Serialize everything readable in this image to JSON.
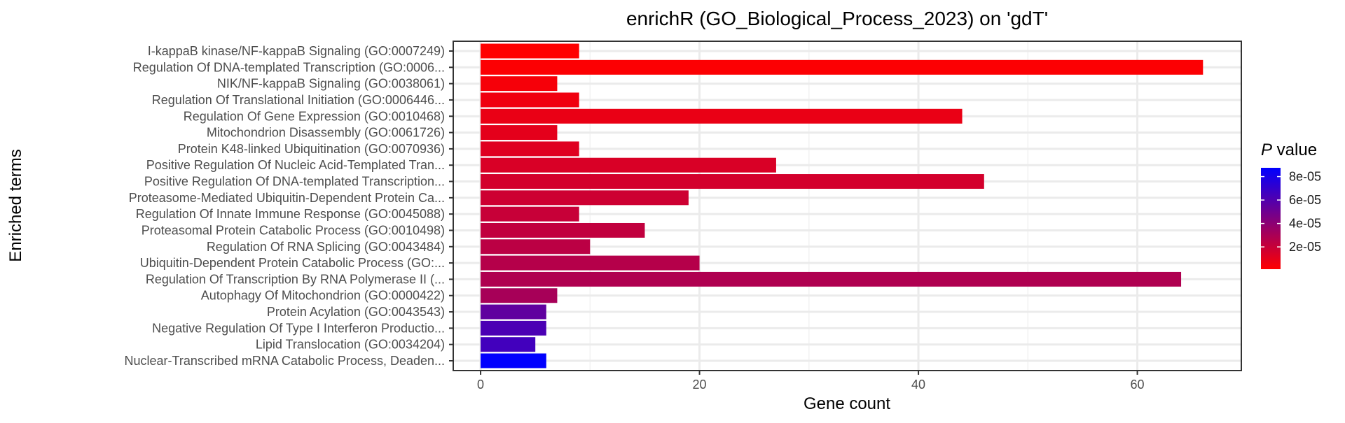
{
  "chart_data": {
    "type": "bar",
    "orientation": "horizontal",
    "title": "enrichR (GO_Biological_Process_2023) on 'gdT'",
    "xlabel": "Gene count",
    "ylabel": "Enriched terms",
    "xlim": [
      -2.5,
      69.5
    ],
    "xticks": [
      0,
      20,
      40,
      60
    ],
    "xtick_labels": [
      "0",
      "20",
      "40",
      "60"
    ],
    "grid": true,
    "legend": {
      "title_italic": "P",
      "title_rest": " value",
      "position": "right",
      "type": "colorbar",
      "range": [
        1e-06,
        8.75e-05
      ],
      "ticks": [
        2e-05,
        4e-05,
        6e-05,
        8e-05
      ],
      "tick_labels": [
        "2e-05",
        "4e-05",
        "6e-05",
        "8e-05"
      ],
      "color_low": "#ff0000",
      "color_high": "#0000ff"
    },
    "categories": [
      "I-kappaB kinase/NF-kappaB Signaling (GO:0007249)",
      "Regulation Of DNA-templated Transcription (GO:0006...",
      "NIK/NF-kappaB Signaling (GO:0038061)",
      "Regulation Of Translational Initiation (GO:0006446...",
      "Regulation Of Gene Expression (GO:0010468)",
      "Mitochondrion Disassembly (GO:0061726)",
      "Protein K48-linked Ubiquitination (GO:0070936)",
      "Positive Regulation Of Nucleic Acid-Templated Tran...",
      "Positive Regulation Of DNA-templated Transcription...",
      "Proteasome-Mediated Ubiquitin-Dependent Protein Ca...",
      "Regulation Of Innate Immune Response (GO:0045088)",
      "Proteasomal Protein Catabolic Process (GO:0010498)",
      "Regulation Of RNA Splicing (GO:0043484)",
      "Ubiquitin-Dependent Protein Catabolic Process (GO:...",
      "Regulation Of Transcription By RNA Polymerase II (...",
      "Autophagy Of Mitochondrion (GO:0000422)",
      "Protein Acylation (GO:0043543)",
      "Negative Regulation Of Type I Interferon Productio...",
      "Lipid Translocation (GO:0034204)",
      "Nuclear-Transcribed mRNA Catabolic Process, Deaden..."
    ],
    "values": [
      9,
      66,
      7,
      9,
      44,
      7,
      9,
      27,
      46,
      19,
      9,
      15,
      10,
      20,
      64,
      7,
      6,
      6,
      5,
      6
    ],
    "p_values": [
      1e-06,
      2e-06,
      4e-06,
      6e-06,
      8e-06,
      1e-05,
      1.2e-05,
      1.4e-05,
      1.6e-05,
      1.8e-05,
      2e-05,
      2.2e-05,
      2.4e-05,
      2.6e-05,
      2.8e-05,
      3.1e-05,
      5.5e-05,
      6.2e-05,
      6.5e-05,
      8.7e-05
    ]
  }
}
